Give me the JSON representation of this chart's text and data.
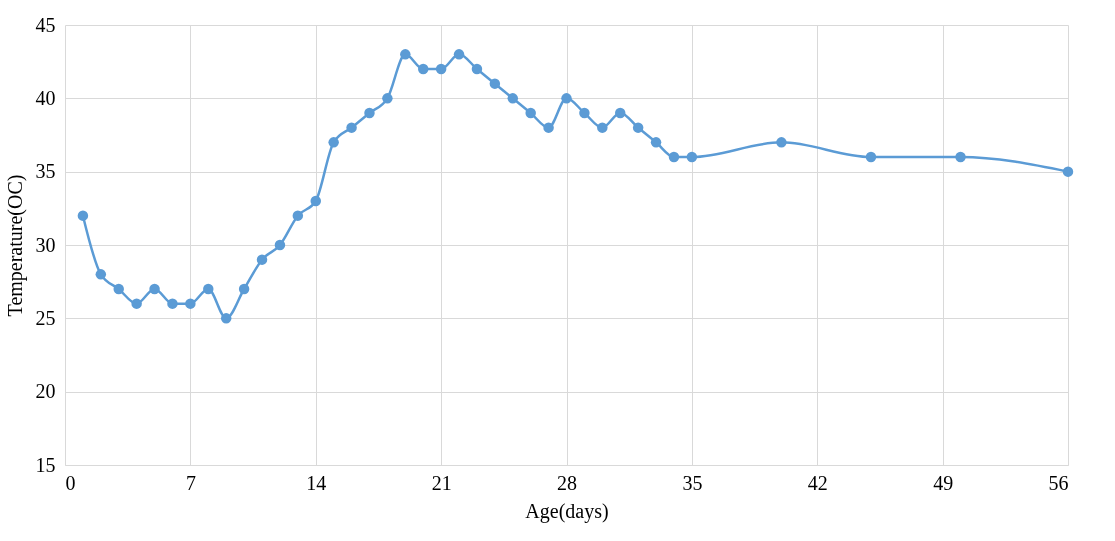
{
  "chart_data": {
    "type": "line",
    "xlabel": "Age(days)",
    "ylabel": "Temperature(OC)",
    "x": [
      1,
      2,
      3,
      4,
      5,
      6,
      7,
      8,
      9,
      10,
      11,
      12,
      13,
      14,
      15,
      16,
      17,
      18,
      19,
      20,
      21,
      22,
      23,
      24,
      25,
      26,
      27,
      28,
      29,
      30,
      31,
      32,
      33,
      34,
      35,
      40,
      45,
      50,
      56
    ],
    "series": [
      {
        "color": "#5b9bd5",
        "values": [
          32,
          28,
          27,
          26,
          27,
          26,
          26,
          27,
          25,
          27,
          29,
          30,
          32,
          33,
          37,
          38,
          39,
          40,
          43,
          42,
          42,
          43,
          42,
          41,
          40,
          39,
          38,
          40,
          39,
          38,
          39,
          38,
          37,
          36,
          36,
          37,
          36,
          36,
          35
        ]
      }
    ],
    "xlim": [
      0,
      56
    ],
    "xticks": [
      0,
      7,
      14,
      21,
      28,
      35,
      42,
      49,
      56
    ],
    "ylim": [
      15,
      45
    ],
    "yticks": [
      15,
      20,
      25,
      30,
      35,
      40,
      45
    ],
    "grid": true,
    "marker": "circle",
    "line_style": "solid"
  }
}
